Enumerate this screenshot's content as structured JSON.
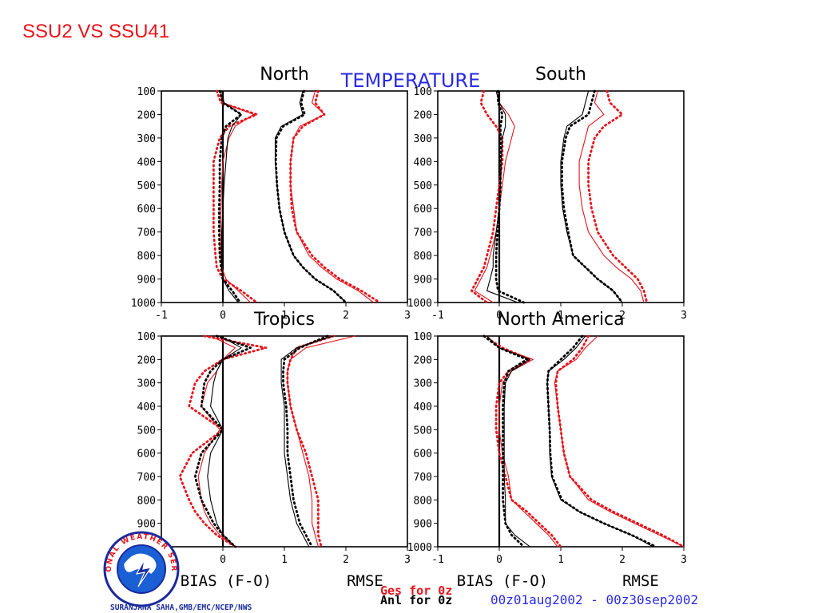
{
  "slide": {
    "title": "SSU2 VS SSU41"
  },
  "figure": {
    "title": "TEMPERATURE",
    "colors": {
      "title": "#2a2ae6",
      "axes": "#000000",
      "series_red": "#e8141b",
      "series_black": "#000000"
    },
    "bottom_labels": {
      "bias": "BIAS (F-O)",
      "rmse": "RMSE"
    },
    "legend": {
      "ges": "Ges for 0z",
      "anl": "Anl for 0z",
      "ges_color": "#e8141b",
      "anl_color": "#000000"
    },
    "date_range": "00z01aug2002 - 00z30sep2002",
    "credit": "SURANJANA SAHA,GMB/EMC/NCEP/NWS",
    "logo": {
      "name": "nws-logo",
      "text": "NATIONAL WEATHER SERVICE"
    }
  },
  "chart_data": [
    {
      "type": "line",
      "title": "North",
      "xlim": [
        -1,
        3
      ],
      "ylim": [
        1000,
        100
      ],
      "xticks": [
        "-1",
        "0",
        "1",
        "2",
        "3"
      ],
      "yticks": [
        "100",
        "200",
        "300",
        "400",
        "500",
        "600",
        "700",
        "800",
        "900",
        "1000"
      ],
      "y": [
        100,
        150,
        200,
        250,
        300,
        400,
        500,
        600,
        700,
        800,
        850,
        900,
        950,
        1000
      ],
      "series": [
        {
          "style": "red-solid",
          "bias": [
            -0.05,
            0.0,
            0.5,
            0.2,
            0.1,
            0.0,
            -0.02,
            -0.03,
            -0.04,
            -0.03,
            -0.02,
            0.05,
            0.25,
            0.45
          ],
          "rmse": [
            1.5,
            1.45,
            1.65,
            1.25,
            1.15,
            1.1,
            1.1,
            1.15,
            1.2,
            1.4,
            1.6,
            1.85,
            2.2,
            2.45
          ]
        },
        {
          "style": "red-dotted",
          "bias": [
            -0.1,
            -0.03,
            0.55,
            0.1,
            -0.05,
            -0.15,
            -0.15,
            -0.15,
            -0.15,
            -0.12,
            -0.1,
            0.0,
            0.3,
            0.55
          ],
          "rmse": [
            1.55,
            1.5,
            1.65,
            1.3,
            1.15,
            1.1,
            1.1,
            1.12,
            1.2,
            1.45,
            1.65,
            1.9,
            2.25,
            2.55
          ]
        },
        {
          "style": "black-solid",
          "bias": [
            -0.02,
            0.02,
            0.3,
            0.15,
            0.08,
            0.05,
            0.02,
            0.0,
            -0.02,
            -0.02,
            -0.02,
            0.0,
            0.1,
            0.25
          ],
          "rmse": [
            1.3,
            1.25,
            1.3,
            0.95,
            0.85,
            0.85,
            0.88,
            0.92,
            1.0,
            1.15,
            1.3,
            1.5,
            1.8,
            2.0
          ]
        },
        {
          "style": "black-dotted",
          "bias": [
            -0.05,
            0.0,
            0.3,
            0.05,
            -0.02,
            -0.05,
            -0.05,
            -0.06,
            -0.06,
            -0.05,
            -0.03,
            0.0,
            0.15,
            0.28
          ],
          "rmse": [
            1.32,
            1.27,
            1.33,
            0.98,
            0.87,
            0.86,
            0.88,
            0.92,
            1.0,
            1.15,
            1.3,
            1.5,
            1.8,
            2.0
          ]
        }
      ]
    },
    {
      "type": "line",
      "title": "South",
      "xlim": [
        -1,
        3
      ],
      "ylim": [
        1000,
        100
      ],
      "xticks": [
        "-1",
        "0",
        "1",
        "2",
        "3"
      ],
      "yticks": [
        "100",
        "200",
        "300",
        "400",
        "500",
        "600",
        "700",
        "800",
        "900",
        "1000"
      ],
      "y": [
        100,
        150,
        200,
        250,
        300,
        400,
        500,
        600,
        700,
        800,
        850,
        900,
        950,
        1000
      ],
      "series": [
        {
          "style": "red-solid",
          "bias": [
            -0.05,
            0.0,
            0.15,
            0.25,
            0.2,
            0.1,
            0.05,
            0.0,
            -0.05,
            -0.15,
            -0.2,
            -0.3,
            -0.4,
            -0.1
          ],
          "rmse": [
            1.6,
            1.55,
            1.7,
            1.45,
            1.4,
            1.3,
            1.3,
            1.35,
            1.45,
            1.7,
            1.9,
            2.15,
            2.3,
            2.35
          ]
        },
        {
          "style": "red-dotted",
          "bias": [
            -0.25,
            -0.3,
            -0.2,
            -0.05,
            0.05,
            0.05,
            0.0,
            -0.05,
            -0.1,
            -0.2,
            -0.25,
            -0.35,
            -0.45,
            -0.2
          ],
          "rmse": [
            1.75,
            1.8,
            2.0,
            1.7,
            1.55,
            1.45,
            1.45,
            1.5,
            1.6,
            1.85,
            2.05,
            2.25,
            2.35,
            2.4
          ]
        },
        {
          "style": "black-solid",
          "bias": [
            -0.05,
            0.0,
            0.1,
            0.1,
            0.05,
            0.03,
            0.02,
            0.0,
            -0.05,
            -0.1,
            -0.1,
            -0.15,
            -0.2,
            0.3
          ],
          "rmse": [
            1.45,
            1.4,
            1.35,
            1.1,
            1.05,
            1.0,
            1.0,
            1.03,
            1.1,
            1.2,
            1.4,
            1.6,
            1.85,
            2.0
          ]
        },
        {
          "style": "black-dotted",
          "bias": [
            -0.02,
            -0.02,
            0.05,
            0.02,
            0.02,
            0.02,
            0.02,
            0.0,
            -0.03,
            -0.05,
            -0.05,
            -0.05,
            -0.02,
            0.4
          ],
          "rmse": [
            1.55,
            1.5,
            1.45,
            1.15,
            1.08,
            1.02,
            1.02,
            1.05,
            1.12,
            1.2,
            1.4,
            1.6,
            1.85,
            2.0
          ]
        }
      ]
    },
    {
      "type": "line",
      "title": "Tropics",
      "xlim": [
        -1,
        3
      ],
      "ylim": [
        1000,
        100
      ],
      "xticks": [
        "-1",
        "0",
        "1",
        "2",
        "3"
      ],
      "yticks": [
        "100",
        "200",
        "300",
        "400",
        "500",
        "600",
        "700",
        "800",
        "900",
        "1000"
      ],
      "y": [
        100,
        150,
        200,
        250,
        300,
        400,
        500,
        600,
        700,
        800,
        850,
        900,
        950,
        1000
      ],
      "series": [
        {
          "style": "red-solid",
          "bias": [
            -0.2,
            0.2,
            0.0,
            -0.1,
            -0.25,
            -0.35,
            -0.05,
            -0.3,
            -0.4,
            -0.35,
            -0.3,
            -0.2,
            -0.05,
            0.2
          ],
          "rmse": [
            2.15,
            1.35,
            1.1,
            1.05,
            1.05,
            1.1,
            1.2,
            1.3,
            1.4,
            1.45,
            1.45,
            1.45,
            1.5,
            1.55
          ]
        },
        {
          "style": "red-dotted",
          "bias": [
            -0.3,
            0.7,
            0.0,
            -0.3,
            -0.45,
            -0.55,
            0.0,
            -0.5,
            -0.7,
            -0.55,
            -0.45,
            -0.3,
            -0.1,
            0.2
          ],
          "rmse": [
            1.8,
            1.2,
            1.1,
            1.05,
            1.05,
            1.1,
            1.2,
            1.35,
            1.45,
            1.55,
            1.55,
            1.55,
            1.55,
            1.6
          ]
        },
        {
          "style": "black-solid",
          "bias": [
            -0.05,
            0.3,
            0.0,
            -0.1,
            -0.15,
            -0.2,
            0.0,
            -0.2,
            -0.25,
            -0.2,
            -0.15,
            -0.1,
            0.0,
            0.2
          ],
          "rmse": [
            1.8,
            1.2,
            0.95,
            0.95,
            0.95,
            1.0,
            1.0,
            1.0,
            1.05,
            1.1,
            1.15,
            1.2,
            1.3,
            1.4
          ]
        },
        {
          "style": "black-dotted",
          "bias": [
            -0.1,
            0.45,
            0.0,
            -0.2,
            -0.3,
            -0.35,
            0.0,
            -0.35,
            -0.45,
            -0.35,
            -0.25,
            -0.15,
            0.0,
            0.2
          ],
          "rmse": [
            1.7,
            1.25,
            1.0,
            0.98,
            0.98,
            1.03,
            1.05,
            1.05,
            1.1,
            1.15,
            1.2,
            1.25,
            1.35,
            1.45
          ]
        }
      ]
    },
    {
      "type": "line",
      "title": "North America",
      "xlim": [
        -1,
        3
      ],
      "ylim": [
        1000,
        100
      ],
      "xticks": [
        "-1",
        "0",
        "1",
        "2",
        "3"
      ],
      "yticks": [
        "100",
        "200",
        "300",
        "400",
        "500",
        "600",
        "700",
        "800",
        "900",
        "1000"
      ],
      "y": [
        100,
        150,
        200,
        250,
        300,
        400,
        500,
        600,
        700,
        800,
        850,
        900,
        950,
        1000
      ],
      "series": [
        {
          "style": "red-solid",
          "bias": [
            -0.2,
            0.0,
            0.55,
            0.2,
            0.05,
            0.0,
            0.0,
            0.05,
            0.15,
            0.2,
            0.4,
            0.6,
            0.8,
            0.95
          ],
          "rmse": [
            1.6,
            1.4,
            1.25,
            0.95,
            0.9,
            0.95,
            1.0,
            1.05,
            1.15,
            1.45,
            1.8,
            2.2,
            2.6,
            3.0
          ]
        },
        {
          "style": "red-dotted",
          "bias": [
            -0.25,
            0.05,
            0.5,
            0.15,
            0.0,
            -0.05,
            -0.05,
            0.0,
            0.1,
            0.2,
            0.45,
            0.65,
            0.85,
            1.0
          ],
          "rmse": [
            1.45,
            1.35,
            1.2,
            0.95,
            0.92,
            0.95,
            1.0,
            1.05,
            1.15,
            1.5,
            1.85,
            2.25,
            2.65,
            3.0
          ]
        },
        {
          "style": "black-solid",
          "bias": [
            -0.2,
            0.0,
            0.5,
            0.2,
            0.1,
            0.08,
            0.08,
            0.08,
            0.08,
            0.1,
            0.1,
            0.1,
            0.25,
            0.5
          ],
          "rmse": [
            1.4,
            1.25,
            1.05,
            0.8,
            0.78,
            0.8,
            0.82,
            0.82,
            0.85,
            1.0,
            1.3,
            1.7,
            2.15,
            2.5
          ]
        },
        {
          "style": "black-dotted",
          "bias": [
            -0.25,
            0.0,
            0.45,
            0.15,
            0.08,
            0.06,
            0.06,
            0.06,
            0.06,
            0.06,
            0.08,
            0.1,
            0.2,
            0.4
          ],
          "rmse": [
            1.35,
            1.2,
            1.0,
            0.8,
            0.78,
            0.8,
            0.82,
            0.83,
            0.86,
            1.02,
            1.3,
            1.7,
            2.15,
            2.55
          ]
        }
      ]
    }
  ]
}
